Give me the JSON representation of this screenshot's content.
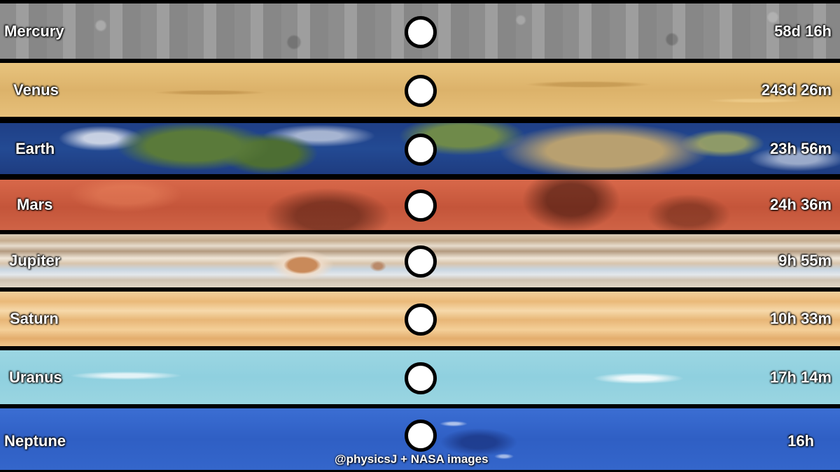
{
  "planets": [
    {
      "name": "Mercury",
      "period": "58d 16h"
    },
    {
      "name": "Venus",
      "period": "243d 26m"
    },
    {
      "name": "Earth",
      "period": "23h 56m"
    },
    {
      "name": "Mars",
      "period": "24h 36m"
    },
    {
      "name": "Jupiter",
      "period": "9h 55m"
    },
    {
      "name": "Saturn",
      "period": "10h 33m"
    },
    {
      "name": "Uranus",
      "period": "17h 14m"
    },
    {
      "name": "Neptune",
      "period": "16h"
    }
  ],
  "credit": "@physicsJ + NASA images"
}
